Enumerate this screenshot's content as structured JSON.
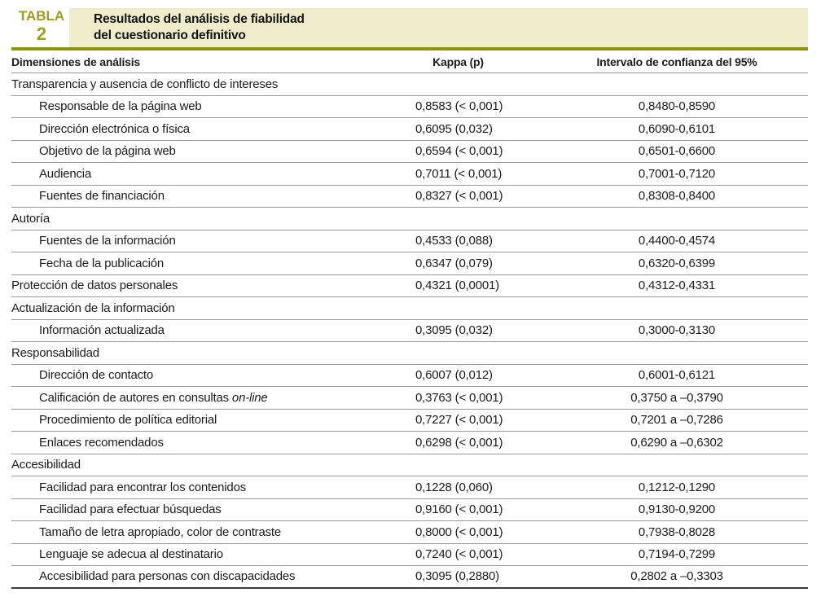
{
  "header": {
    "table_word": "TABLA",
    "table_number": "2",
    "title_line1": "Resultados del análisis de fiabilidad",
    "title_line2": "del cuestionario definitivo"
  },
  "colors": {
    "accent_olive": "#8f9606",
    "accent_olive_text": "#9aa01c",
    "banner_bg": "#eeeccb",
    "text": "#1c1c1c",
    "row_line": "#9b9b9b",
    "bottom_line": "#3a3a3a"
  },
  "chart_data": {
    "type": "table",
    "title": "Resultados del análisis de fiabilidad del cuestionario definitivo",
    "columns": [
      "Dimensiones de análisis",
      "Kappa (p)",
      "Intervalo de confianza del 95%"
    ],
    "rows": [
      {
        "label": "Transparencia y ausencia de conflicto de intereses",
        "indent": false,
        "kappa": "",
        "ci": ""
      },
      {
        "label": "Responsable de la página web",
        "indent": true,
        "kappa": "0,8583 (< 0,001)",
        "ci": "0,8480-0,8590"
      },
      {
        "label": "Dirección electrónica o física",
        "indent": true,
        "kappa": "0,6095 (0,032)",
        "ci": "0,6090-0,6101"
      },
      {
        "label": "Objetivo de la página web",
        "indent": true,
        "kappa": "0,6594 (< 0,001)",
        "ci": "0,6501-0,6600"
      },
      {
        "label": "Audiencia",
        "indent": true,
        "kappa": "0,7011 (< 0,001)",
        "ci": "0,7001-0,7120"
      },
      {
        "label": "Fuentes de financiación",
        "indent": true,
        "kappa": "0,8327 (< 0,001)",
        "ci": "0,8308-0,8400"
      },
      {
        "label": "Autoría",
        "indent": false,
        "kappa": "",
        "ci": ""
      },
      {
        "label": "Fuentes de la información",
        "indent": true,
        "kappa": "0,4533 (0,088)",
        "ci": "0,4400-0,4574"
      },
      {
        "label": "Fecha de la publicación",
        "indent": true,
        "kappa": "0,6347 (0,079)",
        "ci": "0,6320-0,6399"
      },
      {
        "label": "Protección de datos personales",
        "indent": false,
        "kappa": "0,4321 (0,0001)",
        "ci": "0,4312-0,4331"
      },
      {
        "label": "Actualización de la información",
        "indent": false,
        "kappa": "",
        "ci": ""
      },
      {
        "label": "Información actualizada",
        "indent": true,
        "kappa": "0,3095 (0,032)",
        "ci": "0,3000-0,3130"
      },
      {
        "label": "Responsabilidad",
        "indent": false,
        "kappa": "",
        "ci": ""
      },
      {
        "label": "Dirección de contacto",
        "indent": true,
        "kappa": "0,6007 (0,012)",
        "ci": "0,6001-0,6121"
      },
      {
        "label": "Calificación de autores en consultas ",
        "italic": "on-line",
        "indent": true,
        "kappa": "0,3763 (< 0,001)",
        "ci": "0,3750 a –0,3790"
      },
      {
        "label": "Procedimiento de política editorial",
        "indent": true,
        "kappa": "0,7227 (< 0,001)",
        "ci": "0,7201 a –0,7286"
      },
      {
        "label": "Enlaces recomendados",
        "indent": true,
        "kappa": "0,6298 (< 0,001)",
        "ci": "0,6290 a –0,6302"
      },
      {
        "label": "Accesibilidad",
        "indent": false,
        "kappa": "",
        "ci": ""
      },
      {
        "label": "Facilidad para encontrar los contenidos",
        "indent": true,
        "kappa": "0,1228 (0,060)",
        "ci": "0,1212-0,1290"
      },
      {
        "label": "Facilidad para efectuar búsquedas",
        "indent": true,
        "kappa": "0,9160 (< 0,001)",
        "ci": "0,9130-0,9200"
      },
      {
        "label": "Tamaño de letra apropiado, color de contraste",
        "indent": true,
        "kappa": "0,8000 (< 0,001)",
        "ci": "0,7938-0,8028"
      },
      {
        "label": "Lenguaje se adecua al destinatario",
        "indent": true,
        "kappa": "0,7240 (< 0,001)",
        "ci": "0,7194-0,7299"
      },
      {
        "label": "Accesibilidad para personas con discapacidades",
        "indent": true,
        "kappa": "0,3095 (0,2880)",
        "ci": "0,2802 a –0,3303"
      }
    ]
  }
}
